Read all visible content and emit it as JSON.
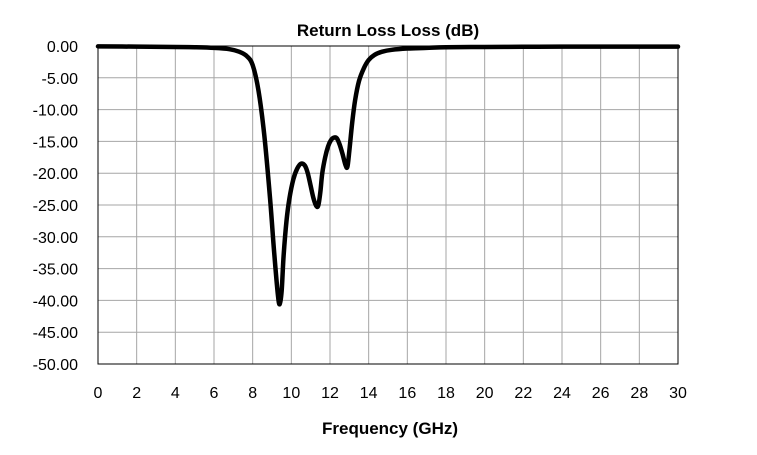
{
  "chart_data": {
    "type": "line",
    "title": "Return Loss Loss (dB)",
    "xlabel": "Frequency (GHz)",
    "ylabel": "",
    "xlim": [
      0,
      30
    ],
    "ylim": [
      -50,
      0
    ],
    "grid": true,
    "legend": "none",
    "x_ticks": [
      "0",
      "2",
      "4",
      "6",
      "8",
      "10",
      "12",
      "14",
      "16",
      "18",
      "20",
      "22",
      "24",
      "26",
      "28",
      "30"
    ],
    "y_ticks": [
      "0.00",
      "-5.00",
      "-10.00",
      "-15.00",
      "-20.00",
      "-25.00",
      "-30.00",
      "-35.00",
      "-40.00",
      "-45.00",
      "-50.00"
    ],
    "line_color": "#000000",
    "series": [
      {
        "x": [
          0,
          2,
          4,
          5,
          6,
          6.8,
          7.3,
          7.7,
          8.0,
          8.3,
          8.6,
          8.9,
          9.1,
          9.3,
          9.4,
          9.5,
          9.6,
          9.75,
          9.9,
          10.1,
          10.3,
          10.5,
          10.7,
          10.85,
          11.0,
          11.15,
          11.3,
          11.4,
          11.5,
          11.6,
          11.75,
          11.9,
          12.05,
          12.2,
          12.35,
          12.5,
          12.65,
          12.8,
          12.9,
          13.0,
          13.15,
          13.3,
          13.5,
          13.75,
          14.0,
          14.3,
          14.7,
          15.2,
          16,
          17,
          18,
          20,
          22,
          24,
          26,
          28,
          30
        ],
        "y": [
          -0.05,
          -0.1,
          -0.15,
          -0.2,
          -0.3,
          -0.5,
          -0.9,
          -1.6,
          -3.0,
          -7.0,
          -14.0,
          -24.0,
          -32.0,
          -39.0,
          -40.6,
          -38.5,
          -33.0,
          -27.5,
          -24.0,
          -21.0,
          -19.3,
          -18.5,
          -18.8,
          -20.0,
          -22.0,
          -24.0,
          -25.2,
          -25.0,
          -23.0,
          -20.0,
          -17.5,
          -15.8,
          -14.8,
          -14.4,
          -14.5,
          -15.5,
          -17.0,
          -18.7,
          -19.0,
          -16.5,
          -12.0,
          -8.5,
          -5.5,
          -3.5,
          -2.2,
          -1.4,
          -0.9,
          -0.6,
          -0.4,
          -0.3,
          -0.2,
          -0.15,
          -0.12,
          -0.1,
          -0.1,
          -0.1,
          -0.1
        ]
      }
    ]
  }
}
